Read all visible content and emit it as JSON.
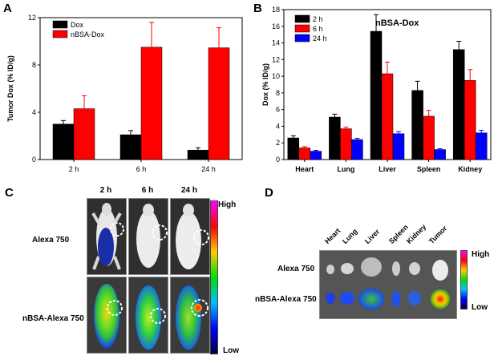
{
  "panels": {
    "a": "A",
    "b": "B",
    "c": "C",
    "d": "D"
  },
  "chart_data": [
    {
      "type": "bar",
      "panel": "A",
      "title": "",
      "xlabel": "",
      "ylabel": "Tumor Dox (% ID/g)",
      "ylim": [
        0,
        12
      ],
      "yticks": [
        0,
        4,
        8,
        12
      ],
      "categories": [
        "2 h",
        "6 h",
        "24 h"
      ],
      "legend_position": "top-left",
      "series": [
        {
          "name": "Dox",
          "color": "#000000",
          "values": [
            3.0,
            2.1,
            0.8
          ],
          "errors": [
            0.3,
            0.35,
            0.2
          ]
        },
        {
          "name": "nBSA-Dox",
          "color": "#ff0000",
          "values": [
            4.3,
            9.5,
            9.45
          ],
          "errors": [
            1.1,
            2.1,
            1.7
          ]
        }
      ]
    },
    {
      "type": "bar",
      "panel": "B",
      "title": "nBSA-Dox",
      "xlabel": "",
      "ylabel": "Dox (% ID/g)",
      "ylim": [
        0,
        18
      ],
      "yticks": [
        0,
        2,
        4,
        6,
        8,
        10,
        12,
        14,
        16,
        18
      ],
      "categories": [
        "Heart",
        "Lung",
        "Liver",
        "Spleen",
        "Kidney"
      ],
      "legend_position": "top-left",
      "series": [
        {
          "name": "2 h",
          "color": "#000000",
          "values": [
            2.6,
            5.1,
            15.4,
            8.3,
            13.2
          ],
          "errors": [
            0.25,
            0.35,
            2.0,
            1.1,
            1.0
          ]
        },
        {
          "name": "6 h",
          "color": "#ff0000",
          "values": [
            1.4,
            3.7,
            10.3,
            5.2,
            9.5
          ],
          "errors": [
            0.15,
            0.2,
            1.4,
            0.7,
            1.3
          ]
        },
        {
          "name": "24 h",
          "color": "#0000ff",
          "values": [
            1.0,
            2.4,
            3.1,
            1.2,
            3.2
          ],
          "errors": [
            0.1,
            0.15,
            0.25,
            0.1,
            0.3
          ]
        }
      ]
    }
  ],
  "imaging_c": {
    "columns": [
      "2 h",
      "6 h",
      "24 h"
    ],
    "rows": [
      "Alexa 750",
      "nBSA-Alexa 750"
    ],
    "scale_high": "High",
    "scale_low": "Low"
  },
  "imaging_d": {
    "organs": [
      "Heart",
      "Lung",
      "Liver",
      "Spleen",
      "Kidney",
      "Tumor"
    ],
    "rows": [
      "Alexa 750",
      "nBSA-Alexa 750"
    ],
    "scale_high": "High",
    "scale_low": "Low"
  }
}
